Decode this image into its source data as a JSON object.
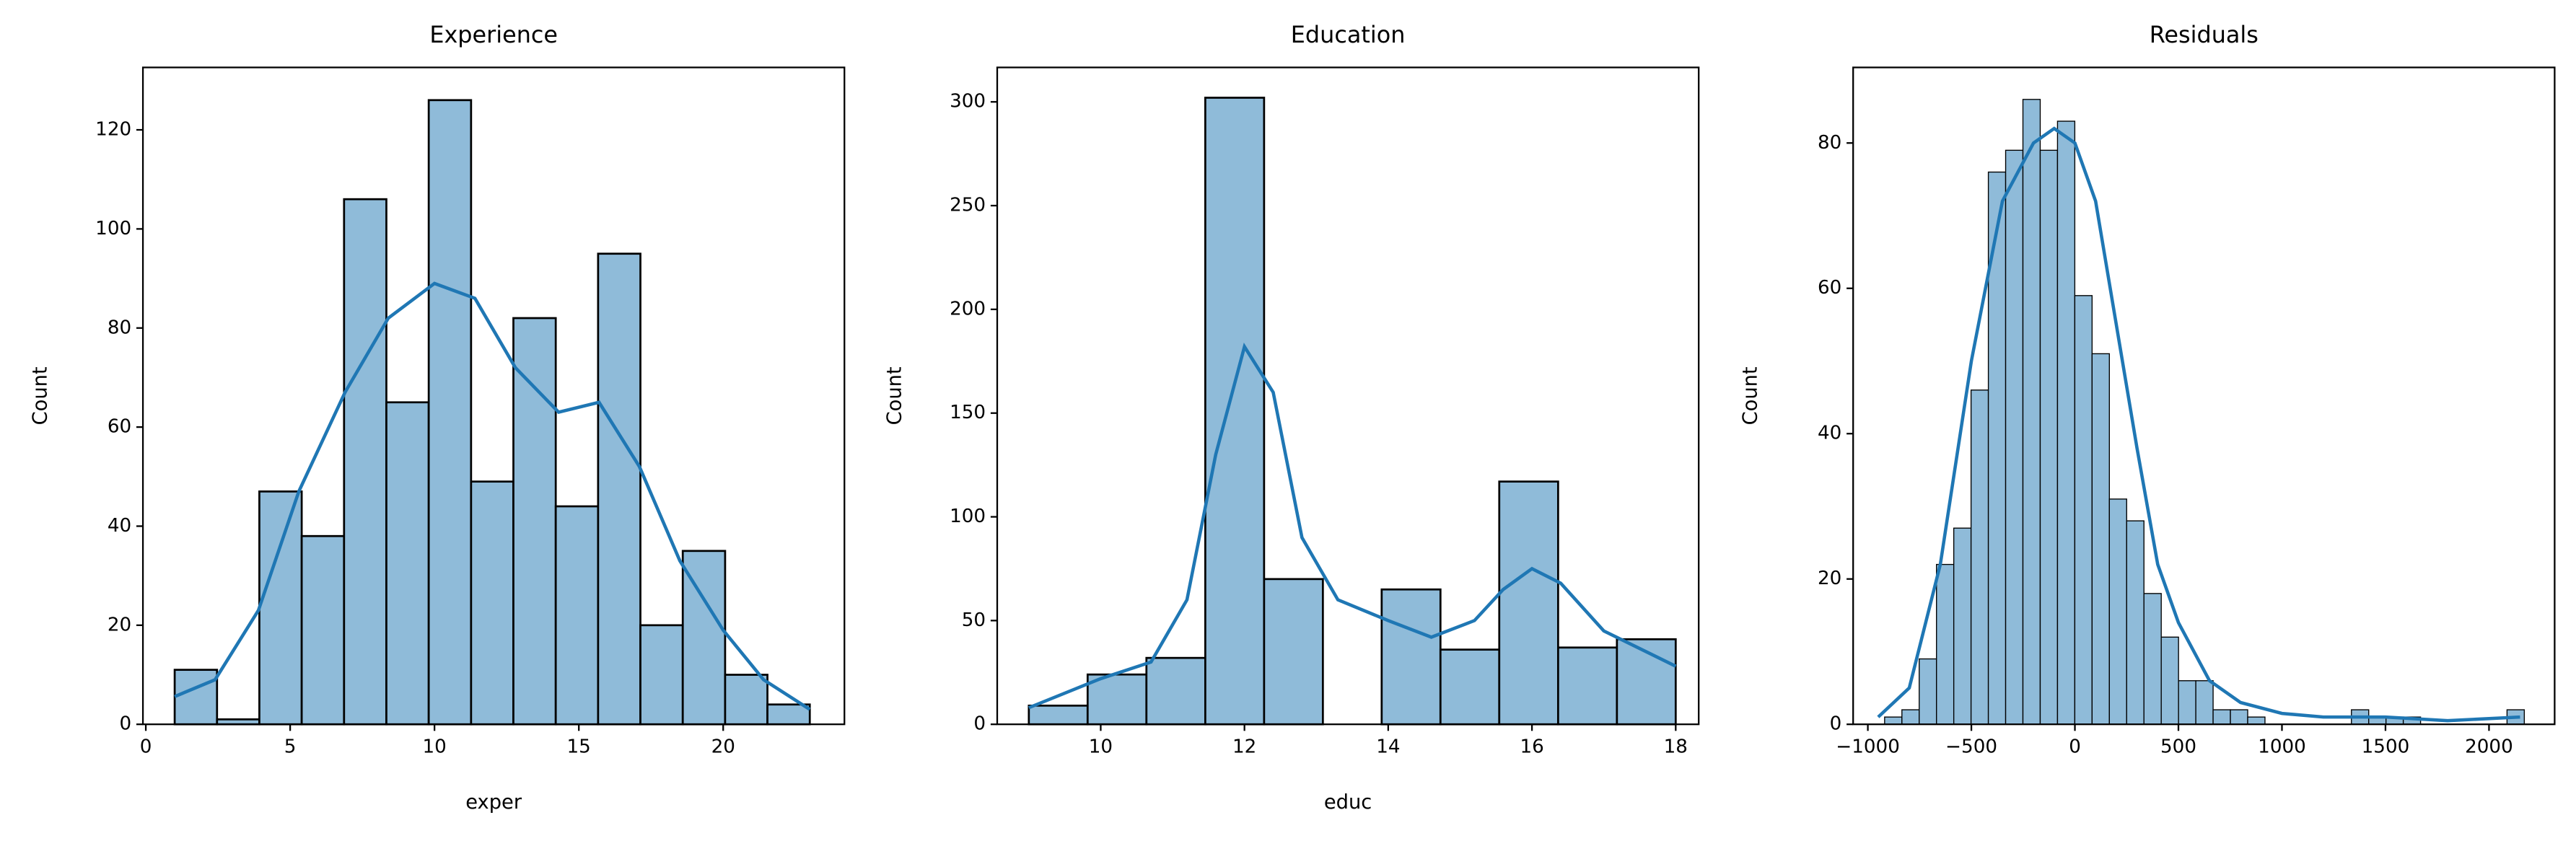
{
  "chart_data": [
    {
      "type": "histogram",
      "title": "Experience",
      "xlabel": "exper",
      "ylabel": "Count",
      "bins": [
        1,
        2.467,
        3.933,
        5.4,
        6.867,
        8.333,
        9.8,
        11.267,
        12.733,
        14.2,
        15.667,
        17.133,
        18.6,
        20.067,
        21.533,
        23
      ],
      "values": [
        11,
        1,
        47,
        38,
        106,
        65,
        126,
        49,
        82,
        44,
        95,
        20,
        35,
        10,
        4
      ],
      "color": "#8fbbd9",
      "line": {
        "color": "#1f77b4",
        "x": [
          1,
          2.4,
          3.9,
          5.3,
          6.9,
          8.4,
          10,
          11.4,
          12.8,
          14.3,
          15.7,
          17.1,
          18.5,
          20,
          21.4,
          23
        ],
        "values": [
          5.6,
          9,
          23,
          47,
          67,
          82,
          89,
          86,
          72,
          63,
          65,
          52,
          33,
          19,
          9,
          3
        ]
      },
      "xlim": [
        -0.1,
        24.2
      ],
      "ylim": [
        0,
        132.6
      ],
      "xticks": [
        0,
        5,
        10,
        15,
        20
      ],
      "yticks": [
        0,
        20,
        40,
        60,
        80,
        100,
        120
      ]
    },
    {
      "type": "histogram",
      "title": "Education",
      "xlabel": "educ",
      "ylabel": "Count",
      "bins": [
        9,
        9.818,
        10.636,
        11.455,
        12.273,
        13.091,
        13.909,
        14.727,
        15.545,
        16.364,
        17.182,
        18
      ],
      "values": [
        9,
        24,
        32,
        302,
        70,
        0,
        65,
        36,
        117,
        37,
        41
      ],
      "color": "#8fbbd9",
      "line": {
        "color": "#1f77b4",
        "x": [
          9,
          10,
          10.7,
          11.2,
          11.6,
          12,
          12.4,
          12.8,
          13.3,
          14,
          14.6,
          15.2,
          15.6,
          16,
          16.4,
          17,
          18
        ],
        "values": [
          8,
          22,
          30,
          60,
          130,
          182,
          160,
          90,
          60,
          50,
          42,
          50,
          65,
          75,
          68,
          45,
          28
        ]
      },
      "xlim": [
        8.56,
        18.32
      ],
      "ylim": [
        0,
        316.6
      ],
      "xticks": [
        10,
        12,
        14,
        16,
        18
      ],
      "yticks": [
        0,
        50,
        100,
        150,
        200,
        250,
        300
      ]
    },
    {
      "type": "histogram",
      "title": "Residuals",
      "ylabel": "Count",
      "bins": [
        -919,
        -835.5,
        -752,
        -668.5,
        -585,
        -501.5,
        -418,
        -334.5,
        -251,
        -167.5,
        -84,
        -0.5,
        83,
        166.5,
        250,
        333.5,
        417,
        500.5,
        584,
        667.5,
        751,
        834.5,
        918,
        1001.5,
        1085,
        1168.5,
        1252,
        1335.5,
        1419,
        1502.5,
        1586,
        1669.5,
        1753,
        1836.5,
        1920,
        2003.5,
        2087,
        2170.5
      ],
      "values": [
        1,
        2,
        9,
        22,
        27,
        46,
        76,
        79,
        86,
        79,
        83,
        59,
        51,
        31,
        28,
        18,
        12,
        6,
        6,
        2,
        2,
        1,
        0,
        0,
        0,
        0,
        0,
        2,
        1,
        1,
        1,
        0,
        0,
        0,
        0,
        0,
        2
      ],
      "color": "#8fbbd9",
      "line": {
        "color": "#1f77b4",
        "x": [
          -950,
          -800,
          -650,
          -500,
          -350,
          -200,
          -100,
          0,
          100,
          200,
          300,
          400,
          500,
          650,
          800,
          1000,
          1200,
          1500,
          1800,
          2150
        ],
        "values": [
          1,
          5,
          22,
          50,
          72,
          80,
          82,
          80,
          72,
          55,
          38,
          22,
          14,
          6,
          3,
          1.5,
          1,
          1,
          0.5,
          1
        ]
      },
      "xlim": [
        -1071,
        2317
      ],
      "ylim": [
        0,
        90.4
      ],
      "xticks": [
        {
          "value": -1000,
          "label": "−1000"
        },
        {
          "value": -500,
          "label": "−500"
        },
        0,
        500,
        1000,
        1500,
        2000
      ],
      "yticks": [
        0,
        20,
        40,
        60,
        80
      ]
    }
  ]
}
